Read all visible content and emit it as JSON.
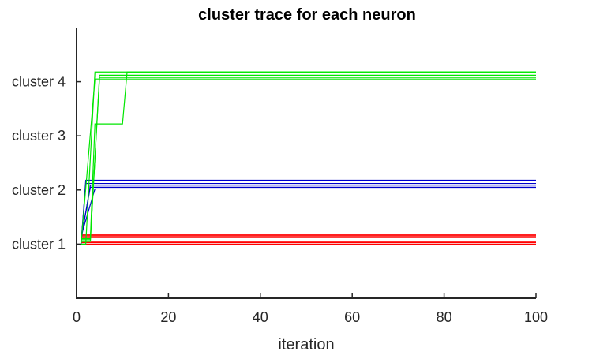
{
  "chart_data": {
    "type": "line",
    "title": "cluster trace for each neuron",
    "xlabel": "iteration",
    "ylabel": "",
    "xlim": [
      0,
      100
    ],
    "ylim": [
      0,
      5
    ],
    "xticks": [
      0,
      20,
      40,
      60,
      80,
      100
    ],
    "yticks": [
      {
        "value": 1,
        "label": "cluster 1"
      },
      {
        "value": 2,
        "label": "cluster 2"
      },
      {
        "value": 3,
        "label": "cluster 3"
      },
      {
        "value": 4,
        "label": "cluster 4"
      }
    ],
    "grid": false,
    "legend": "none",
    "colors": {
      "cluster-1": "#ff0000",
      "cluster-2": "#0000cc",
      "cluster-4": "#00e600"
    },
    "series": [
      {
        "color": "#ff0000",
        "x": [
          1,
          100
        ],
        "y": [
          1.0,
          1.0
        ]
      },
      {
        "color": "#ff0000",
        "x": [
          1,
          100
        ],
        "y": [
          1.03,
          1.03
        ]
      },
      {
        "color": "#ff0000",
        "x": [
          1,
          100
        ],
        "y": [
          1.05,
          1.05
        ]
      },
      {
        "color": "#ff0000",
        "x": [
          1,
          100
        ],
        "y": [
          1.12,
          1.12
        ]
      },
      {
        "color": "#ff0000",
        "x": [
          1,
          100
        ],
        "y": [
          1.15,
          1.15
        ]
      },
      {
        "color": "#ff0000",
        "x": [
          1,
          100
        ],
        "y": [
          1.17,
          1.17
        ]
      },
      {
        "color": "#0000cc",
        "x": [
          1,
          2,
          100
        ],
        "y": [
          1.0,
          2.18,
          2.18
        ]
      },
      {
        "color": "#0000cc",
        "x": [
          1,
          2,
          100
        ],
        "y": [
          1.05,
          2.12,
          2.12
        ]
      },
      {
        "color": "#0000cc",
        "x": [
          1,
          3,
          100
        ],
        "y": [
          1.08,
          2.09,
          2.09
        ]
      },
      {
        "color": "#0000cc",
        "x": [
          1,
          3,
          100
        ],
        "y": [
          1.12,
          2.05,
          2.05
        ]
      },
      {
        "color": "#0000cc",
        "x": [
          1,
          4,
          100
        ],
        "y": [
          1.15,
          2.02,
          2.02
        ]
      },
      {
        "color": "#00e600",
        "x": [
          1,
          2,
          4,
          100
        ],
        "y": [
          1.0,
          1.0,
          4.18,
          4.18
        ]
      },
      {
        "color": "#00e600",
        "x": [
          1,
          3,
          5,
          100
        ],
        "y": [
          1.05,
          1.05,
          4.12,
          4.12
        ]
      },
      {
        "color": "#00e600",
        "x": [
          1,
          3,
          5,
          100
        ],
        "y": [
          1.08,
          1.08,
          4.08,
          4.08
        ]
      },
      {
        "color": "#00e600",
        "x": [
          1,
          4,
          100
        ],
        "y": [
          1.02,
          4.05,
          4.05
        ]
      },
      {
        "color": "#00e600",
        "x": [
          1,
          3,
          4,
          10,
          11,
          100
        ],
        "y": [
          1.1,
          1.1,
          3.22,
          3.22,
          4.18,
          4.18
        ]
      }
    ]
  }
}
